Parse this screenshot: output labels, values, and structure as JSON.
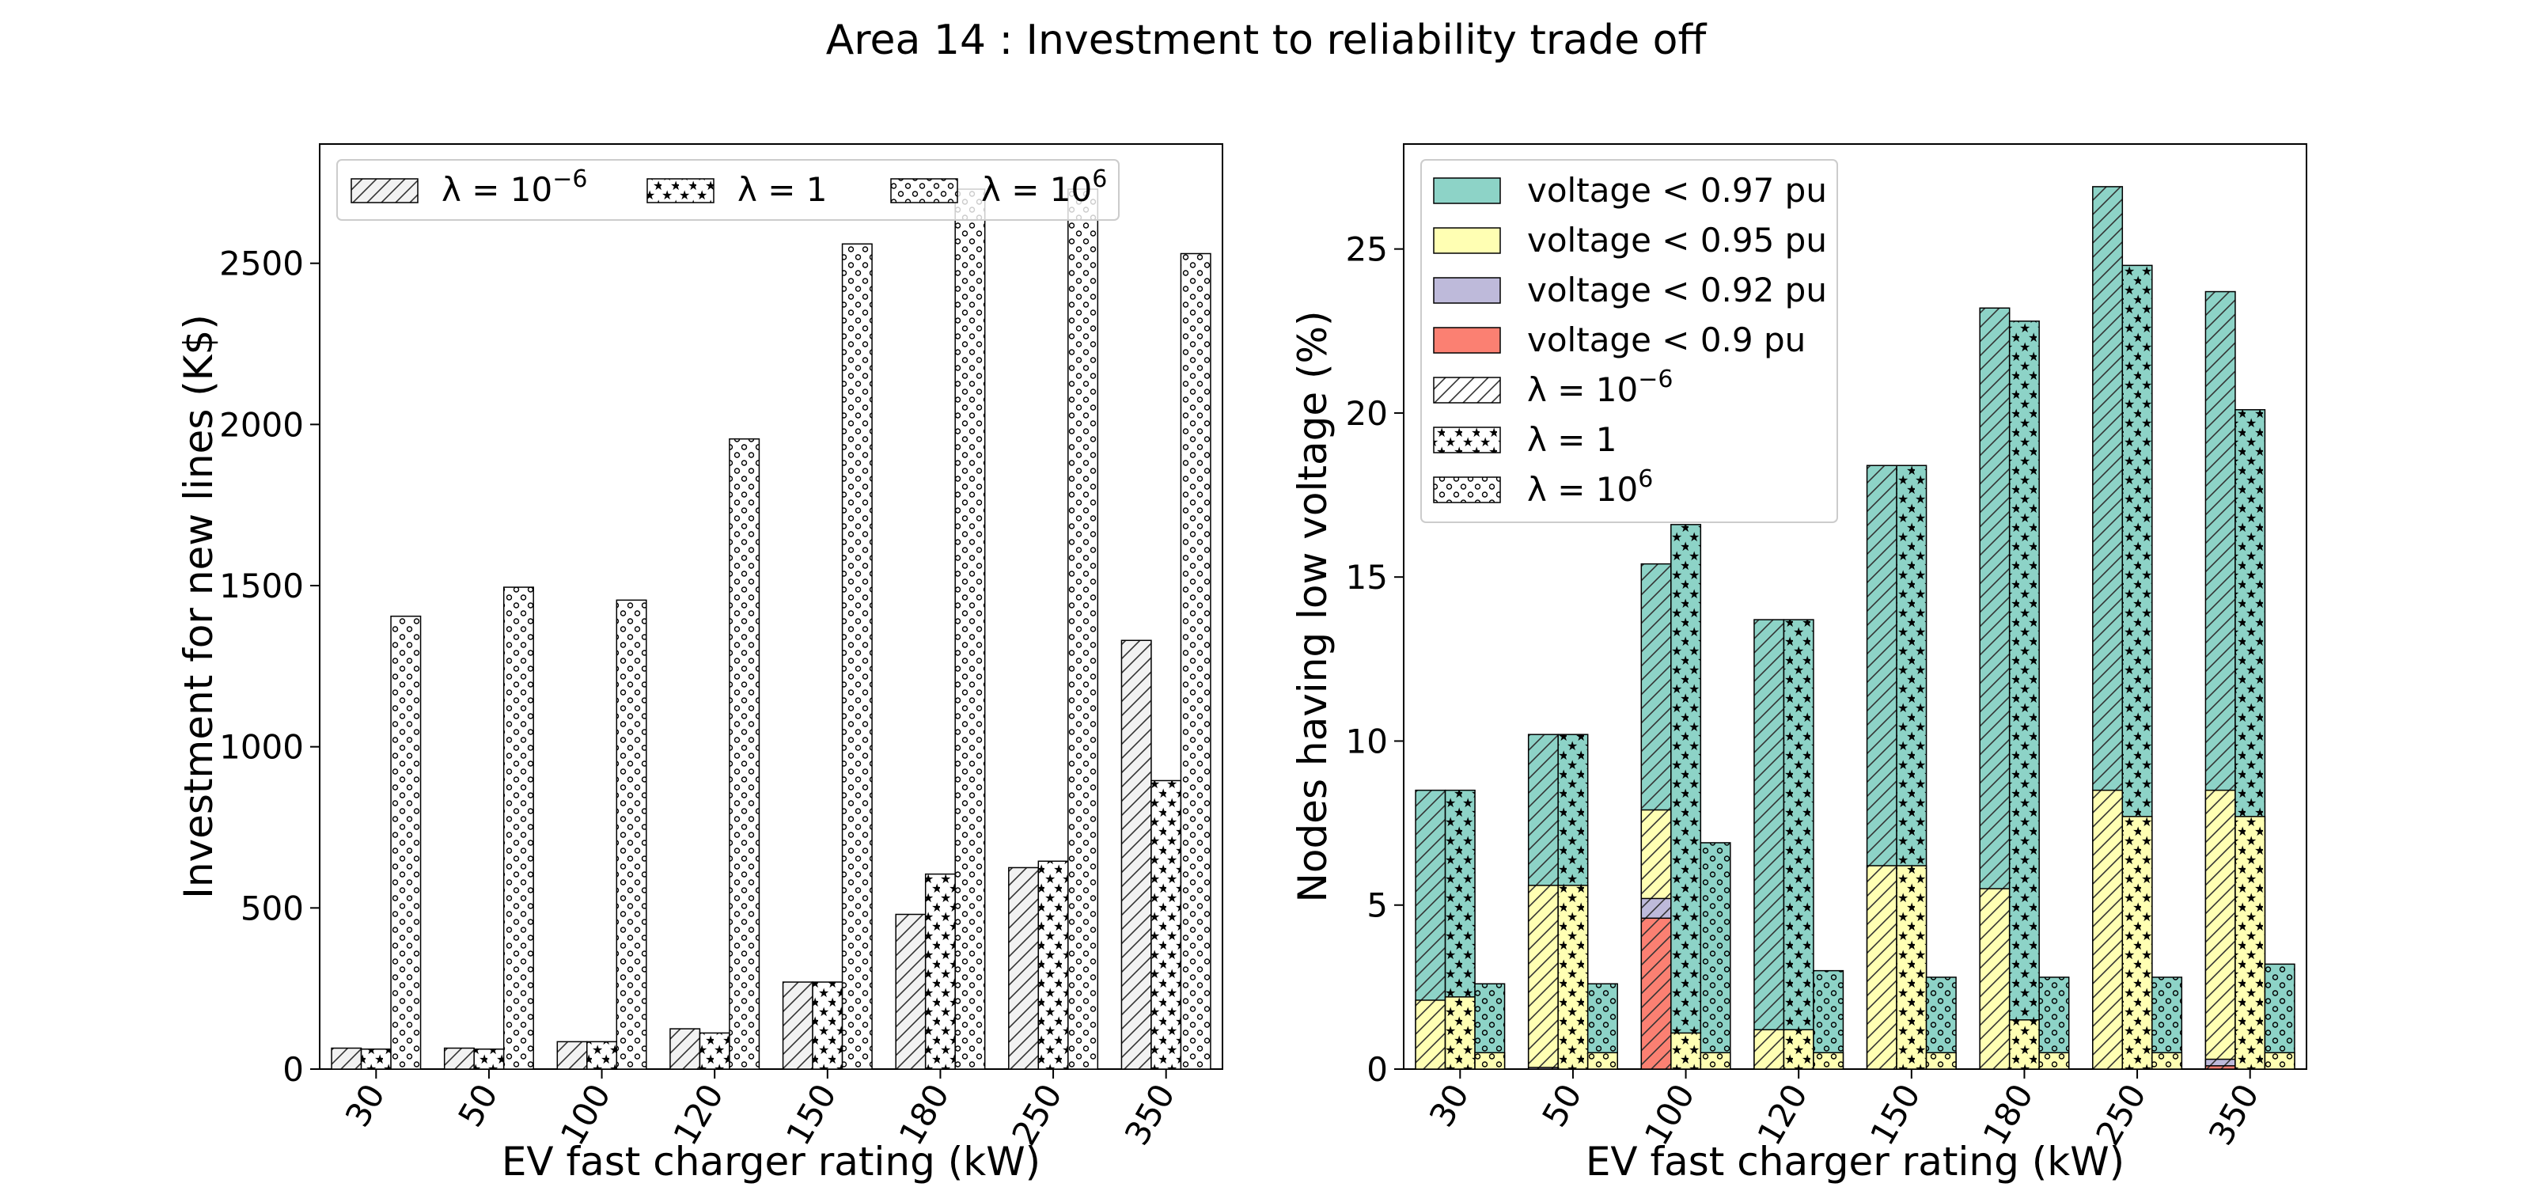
{
  "title": "Area 14 : Investment to reliability trade off",
  "chart_data": [
    {
      "type": "bar",
      "xlabel": "EV fast charger rating (kW)",
      "ylabel": "Investment for new lines (K$)",
      "categories": [
        "30",
        "50",
        "100",
        "120",
        "150",
        "180",
        "250",
        "350"
      ],
      "ylim": [
        0,
        2870
      ],
      "yticks": [
        0,
        500,
        1000,
        1500,
        2000,
        2500
      ],
      "legend_position": "top, 3 columns",
      "series": [
        {
          "name": "λ = 10⁻⁶",
          "hatch": "diagonal",
          "color": "#f2f2f2",
          "values": [
            65,
            65,
            85,
            125,
            270,
            480,
            625,
            1330
          ]
        },
        {
          "name": "λ = 1",
          "hatch": "stars",
          "color": "#ffffff",
          "values": [
            62,
            62,
            85,
            112,
            270,
            605,
            645,
            895
          ]
        },
        {
          "name": "λ = 10⁶",
          "hatch": "circles",
          "color": "#ffffff",
          "values": [
            1405,
            1495,
            1455,
            1955,
            2560,
            2730,
            2730,
            2530
          ]
        }
      ]
    },
    {
      "type": "bar",
      "stacked": true,
      "xlabel": "EV fast charger rating (kW)",
      "ylabel": "Nodes having low voltage (%)",
      "categories": [
        "30",
        "50",
        "100",
        "120",
        "150",
        "180",
        "250",
        "350"
      ],
      "ylim": [
        0,
        28.2
      ],
      "yticks": [
        0,
        5,
        10,
        15,
        20,
        25
      ],
      "legend_position": "top-left",
      "voltage_levels": [
        {
          "name": "voltage < 0.97 pu",
          "color": "#8dd3c7"
        },
        {
          "name": "voltage < 0.95 pu",
          "color": "#ffffb3"
        },
        {
          "name": "voltage < 0.92 pu",
          "color": "#bebada"
        },
        {
          "name": "voltage < 0.9 pu",
          "color": "#fb8072"
        }
      ],
      "lambda_series": [
        {
          "name": "λ = 10⁻⁶",
          "hatch": "diagonal",
          "v097": [
            8.5,
            10.2,
            15.4,
            13.7,
            18.4,
            23.2,
            26.9,
            23.7
          ],
          "v095": [
            2.1,
            5.6,
            7.9,
            1.2,
            6.2,
            5.5,
            8.5,
            8.5
          ],
          "v092": [
            0,
            0.05,
            5.2,
            0,
            0,
            0,
            0,
            0.3
          ],
          "v090": [
            0,
            0,
            4.6,
            0,
            0,
            0,
            0,
            0.1
          ]
        },
        {
          "name": "λ = 1",
          "hatch": "stars",
          "v097": [
            8.5,
            10.2,
            16.6,
            13.7,
            18.4,
            22.8,
            24.5,
            20.1
          ],
          "v095": [
            2.2,
            5.6,
            1.1,
            1.2,
            6.2,
            1.5,
            7.7,
            7.7
          ],
          "v092": [
            0,
            0,
            0,
            0,
            0,
            0,
            0,
            0
          ],
          "v090": [
            0,
            0,
            0,
            0,
            0,
            0,
            0,
            0
          ]
        },
        {
          "name": "λ = 10⁶",
          "hatch": "circles",
          "v097": [
            2.6,
            2.6,
            6.9,
            3.0,
            2.8,
            2.8,
            2.8,
            3.2
          ],
          "v095": [
            0.5,
            0.5,
            0.5,
            0.5,
            0.5,
            0.5,
            0.5,
            0.5
          ],
          "v092": [
            0,
            0,
            0,
            0,
            0,
            0,
            0,
            0
          ],
          "v090": [
            0,
            0,
            0,
            0,
            0,
            0,
            0,
            0
          ]
        }
      ]
    }
  ]
}
